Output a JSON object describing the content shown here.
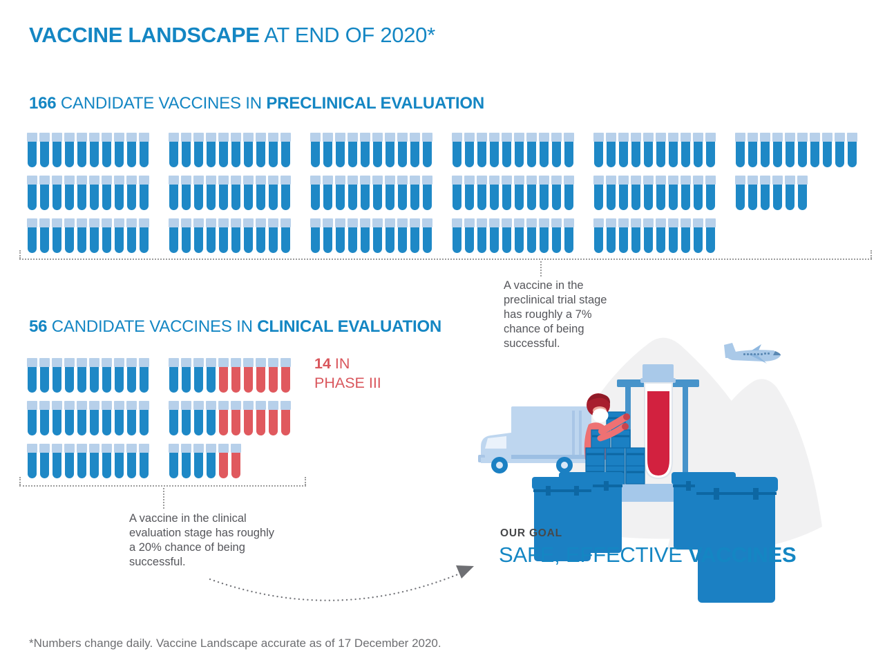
{
  "title": {
    "bold": "VACCINE LANDSCAPE",
    "rest": " AT END OF 2020*"
  },
  "preclinical": {
    "count": "166",
    "label": " CANDIDATE VACCINES IN ",
    "label_em": "PRECLINICAL EVALUATION",
    "rows": [
      [
        {
          "blue": 10
        },
        {
          "blue": 10
        },
        {
          "blue": 10
        },
        {
          "blue": 10
        },
        {
          "blue": 10
        },
        {
          "blue": 10
        }
      ],
      [
        {
          "blue": 10
        },
        {
          "blue": 10
        },
        {
          "blue": 10
        },
        {
          "blue": 10
        },
        {
          "blue": 10
        },
        {
          "blue": 6
        }
      ],
      [
        {
          "blue": 10
        },
        {
          "blue": 10
        },
        {
          "blue": 10
        },
        {
          "blue": 10
        },
        {
          "blue": 10
        }
      ]
    ],
    "annotation": "A vaccine in the preclinical trial stage has roughly a 7% chance of being successful."
  },
  "clinical": {
    "count": "56",
    "label": " CANDIDATE VACCINES IN ",
    "label_em": "CLINICAL EVALUATION",
    "rows": [
      [
        {
          "blue": 10
        },
        {
          "blue": 4,
          "red": 6
        }
      ],
      [
        {
          "blue": 10
        },
        {
          "blue": 4,
          "red": 6
        }
      ],
      [
        {
          "blue": 10
        },
        {
          "blue": 4,
          "red": 2
        }
      ]
    ],
    "phase3": {
      "count": "14",
      "suffix": " IN",
      "line2": "PHASE III"
    },
    "annotation": "A vaccine in the clinical evaluation stage has roughly a 20% chance of being successful."
  },
  "goal": {
    "eyebrow": "OUR GOAL",
    "regular": "SAFE, EFFECTIVE ",
    "bold": "VACCINES"
  },
  "footnote": "*Numbers change daily. Vaccine Landscape accurate as of 17 December 2020.",
  "illustration_icons": [
    "delivery-truck-icon",
    "airplane-icon",
    "masked-worker-icon",
    "vaccine-crates-icon",
    "giant-test-tube-icon",
    "cooler-boxes-icon"
  ],
  "colors": {
    "accent_blue": "#1486c3",
    "tube_blue": "#1e88c6",
    "tube_cap": "#b7d0ea",
    "tube_red": "#e0595e",
    "phase3_red": "#d9565c",
    "annotation_gray": "#55565b",
    "footnote_gray": "#6d6e71",
    "goal_dark": "#47484a",
    "illustration_red": "#d2213f"
  },
  "chart_data": {
    "type": "pictogram",
    "title": "VACCINE LANDSCAPE AT END OF 2020*",
    "unit": "1 test-tube icon = 1 candidate vaccine",
    "series": [
      {
        "name": "Candidate vaccines in preclinical evaluation",
        "value": 166,
        "color": "#1e88c6"
      },
      {
        "name": "Candidate vaccines in clinical evaluation",
        "value": 56,
        "color": "#1e88c6"
      },
      {
        "name": "Clinical candidates in Phase III",
        "value": 14,
        "color": "#e0595e"
      }
    ],
    "grouping": "icons grouped in tens",
    "annotations": [
      "A vaccine in the preclinical trial stage has roughly a 7% chance of being successful.",
      "A vaccine in the clinical evaluation stage has roughly a 20% chance of being successful."
    ],
    "goal": "OUR GOAL — SAFE, EFFECTIVE VACCINES",
    "footnote": "*Numbers change daily. Vaccine Landscape accurate as of 17 December 2020."
  }
}
